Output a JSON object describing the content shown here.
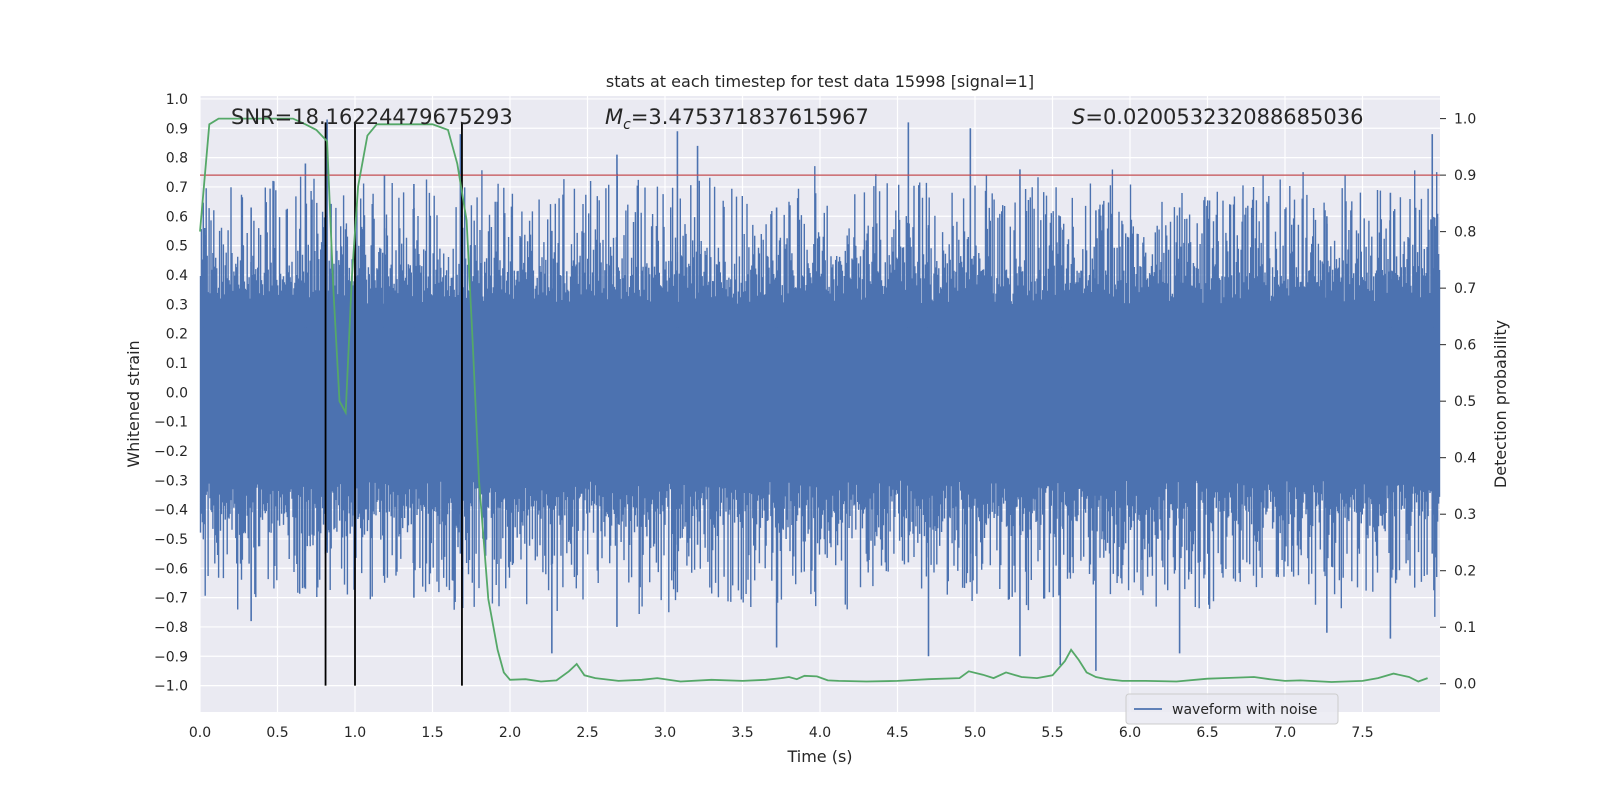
{
  "chart_data": {
    "type": "line",
    "title": "stats at each timestep for test data 15998 [signal=1]",
    "xlabel": "Time (s)",
    "ylabel_left": "Whitened strain",
    "ylabel_right": "Detection probability",
    "xlim": [
      0.0,
      8.0
    ],
    "ylim_left": [
      -1.09,
      1.01
    ],
    "ylim_right": [
      -0.05,
      1.04
    ],
    "x_ticks": [
      "0.0",
      "0.5",
      "1.0",
      "1.5",
      "2.0",
      "2.5",
      "3.0",
      "3.5",
      "4.0",
      "4.5",
      "5.0",
      "5.5",
      "6.0",
      "6.5",
      "7.0",
      "7.5"
    ],
    "y_ticks_left": [
      "1.0",
      "0.9",
      "0.8",
      "0.7",
      "0.6",
      "0.5",
      "0.4",
      "0.3",
      "0.2",
      "0.1",
      "0.0",
      "-0.1",
      "-0.2",
      "-0.3",
      "-0.4",
      "-0.5",
      "-0.6",
      "-0.7",
      "-0.8",
      "-0.9",
      "-1.0"
    ],
    "y_ticks_right": [
      "1.0",
      "0.9",
      "0.8",
      "0.7",
      "0.6",
      "0.5",
      "0.4",
      "0.3",
      "0.2",
      "0.1",
      "0.0"
    ],
    "annotations": {
      "snr": "SNR=18.16224479675293",
      "mc_symbol": "M",
      "mc_sub": "c",
      "mc_value": "=3.475371837615967",
      "s_symbol": "S",
      "s_value": "=0.020053232088685036"
    },
    "legend": [
      {
        "label": "waveform with noise",
        "color": "#4c72b0"
      }
    ],
    "threshold": {
      "value": 0.9,
      "axis": "right",
      "color": "#c44e52"
    },
    "vertical_lines": [
      0.81,
      1.0,
      1.69
    ],
    "noise_series": {
      "name": "waveform with noise",
      "color": "#4c72b0",
      "core_amplitude": 0.3,
      "peaks": [
        {
          "x": 0.03,
          "ymax": 0.56,
          "ymin": -0.45
        },
        {
          "x": 0.33,
          "ymax": 0.63,
          "ymin": -0.78
        },
        {
          "x": 0.68,
          "ymax": 0.78,
          "ymin": -0.67
        },
        {
          "x": 0.82,
          "ymax": 0.93,
          "ymin": -0.54
        },
        {
          "x": 1.19,
          "ymax": 0.74,
          "ymin": -0.62
        },
        {
          "x": 1.38,
          "ymax": 0.71,
          "ymin": -0.7
        },
        {
          "x": 1.68,
          "ymax": 0.88,
          "ymin": -0.55
        },
        {
          "x": 2.27,
          "ymax": 0.55,
          "ymin": -0.89
        },
        {
          "x": 2.69,
          "ymax": 0.81,
          "ymin": -0.8
        },
        {
          "x": 3.08,
          "ymax": 0.89,
          "ymin": -0.52
        },
        {
          "x": 3.21,
          "ymax": 0.84,
          "ymin": -0.52
        },
        {
          "x": 3.72,
          "ymax": 0.63,
          "ymin": -0.87
        },
        {
          "x": 4.57,
          "ymax": 0.92,
          "ymin": -0.58
        },
        {
          "x": 4.7,
          "ymax": 0.57,
          "ymin": -0.9
        },
        {
          "x": 4.97,
          "ymax": 0.9,
          "ymin": -0.55
        },
        {
          "x": 5.29,
          "ymax": 0.76,
          "ymin": -0.9
        },
        {
          "x": 5.55,
          "ymax": 0.6,
          "ymin": -0.93
        },
        {
          "x": 5.78,
          "ymax": 0.62,
          "ymin": -0.95
        },
        {
          "x": 6.32,
          "ymax": 0.63,
          "ymin": -0.89
        },
        {
          "x": 7.27,
          "ymax": 0.6,
          "ymin": -0.82
        },
        {
          "x": 7.68,
          "ymax": 0.68,
          "ymin": -0.84
        },
        {
          "x": 7.95,
          "ymax": 0.88,
          "ymin": -0.55
        }
      ]
    },
    "probability_series": {
      "name": "detection probability",
      "color": "#55a868",
      "x": [
        0.0,
        0.06,
        0.12,
        0.3,
        0.45,
        0.6,
        0.68,
        0.75,
        0.82,
        0.86,
        0.9,
        0.94,
        0.98,
        1.02,
        1.08,
        1.14,
        1.3,
        1.5,
        1.6,
        1.66,
        1.72,
        1.76,
        1.8,
        1.86,
        1.92,
        1.96,
        2.0,
        2.1,
        2.2,
        2.3,
        2.38,
        2.43,
        2.48,
        2.55,
        2.7,
        2.85,
        2.95,
        3.1,
        3.3,
        3.5,
        3.65,
        3.75,
        3.8,
        3.85,
        3.9,
        3.98,
        4.05,
        4.12,
        4.3,
        4.5,
        4.7,
        4.9,
        4.96,
        5.05,
        5.12,
        5.2,
        5.3,
        5.4,
        5.5,
        5.58,
        5.62,
        5.67,
        5.72,
        5.78,
        5.85,
        5.95,
        6.1,
        6.3,
        6.5,
        6.6,
        6.8,
        6.9,
        7.0,
        7.1,
        7.3,
        7.5,
        7.6,
        7.7,
        7.8,
        7.86,
        7.92
      ],
      "y": [
        0.8,
        0.99,
        1.0,
        1.0,
        1.0,
        1.0,
        0.99,
        0.98,
        0.96,
        0.7,
        0.5,
        0.48,
        0.72,
        0.88,
        0.97,
        0.99,
        0.99,
        0.99,
        0.98,
        0.92,
        0.82,
        0.6,
        0.36,
        0.15,
        0.06,
        0.02,
        0.007,
        0.008,
        0.004,
        0.006,
        0.022,
        0.035,
        0.015,
        0.01,
        0.005,
        0.007,
        0.01,
        0.004,
        0.007,
        0.005,
        0.007,
        0.01,
        0.012,
        0.008,
        0.014,
        0.013,
        0.006,
        0.005,
        0.004,
        0.005,
        0.008,
        0.01,
        0.022,
        0.016,
        0.01,
        0.02,
        0.012,
        0.01,
        0.015,
        0.04,
        0.06,
        0.042,
        0.02,
        0.012,
        0.008,
        0.005,
        0.005,
        0.004,
        0.009,
        0.01,
        0.012,
        0.008,
        0.005,
        0.006,
        0.003,
        0.005,
        0.01,
        0.018,
        0.012,
        0.004,
        0.01
      ]
    }
  }
}
